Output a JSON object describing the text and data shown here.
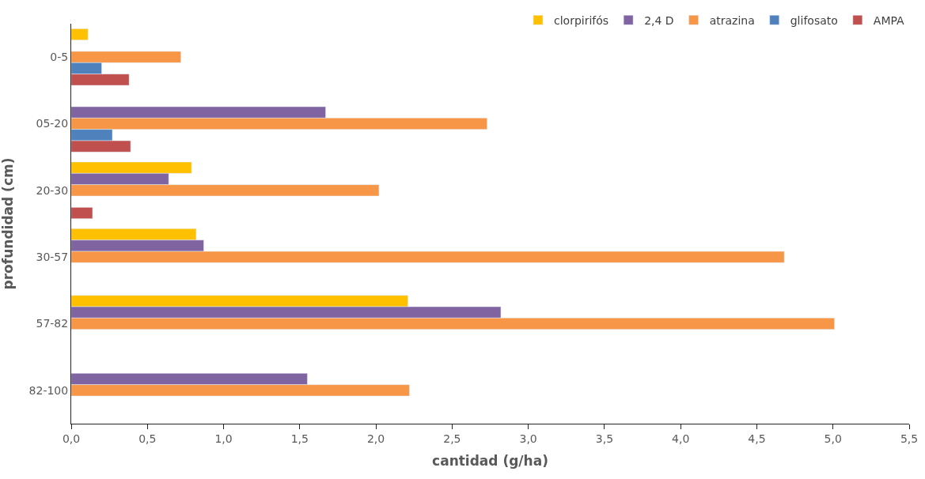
{
  "chart_data": {
    "type": "bar",
    "orientation": "horizontal",
    "xlabel": "cantidad (g/ha)",
    "ylabel": "profundidad (cm)",
    "categories": [
      "0-5",
      "05-20",
      "20-30",
      "30-57",
      "57-82",
      "82-100"
    ],
    "series": [
      {
        "name": "clorpirifós",
        "color": "#ffc000",
        "values": [
          0.11,
          null,
          0.79,
          0.82,
          2.21,
          null
        ]
      },
      {
        "name": "2,4 D",
        "color": "#8064a2",
        "values": [
          null,
          1.67,
          0.64,
          0.87,
          2.82,
          1.55
        ]
      },
      {
        "name": "atrazina",
        "color": "#f79646",
        "values": [
          0.72,
          2.73,
          2.02,
          4.68,
          5.01,
          2.22
        ]
      },
      {
        "name": "glifosato",
        "color": "#4f81bd",
        "values": [
          0.2,
          0.27,
          null,
          null,
          null,
          null
        ]
      },
      {
        "name": "AMPA",
        "color": "#c0504d",
        "values": [
          0.38,
          0.39,
          0.14,
          null,
          null,
          null
        ]
      }
    ],
    "xlim": [
      0,
      5.5
    ],
    "xticks": [
      {
        "value": 0,
        "label": "0,0"
      },
      {
        "value": 0.5,
        "label": "0,5"
      },
      {
        "value": 1,
        "label": "1,0"
      },
      {
        "value": 1.5,
        "label": "1,5"
      },
      {
        "value": 2,
        "label": "2,0"
      },
      {
        "value": 2.5,
        "label": "2,5"
      },
      {
        "value": 3,
        "label": "3,0"
      },
      {
        "value": 3.5,
        "label": "3,5"
      },
      {
        "value": 4,
        "label": "4,0"
      },
      {
        "value": 4.5,
        "label": "4,5"
      },
      {
        "value": 5,
        "label": "5,0"
      },
      {
        "value": 5.5,
        "label": "5,5"
      }
    ],
    "legend": "top right",
    "grid": false
  }
}
